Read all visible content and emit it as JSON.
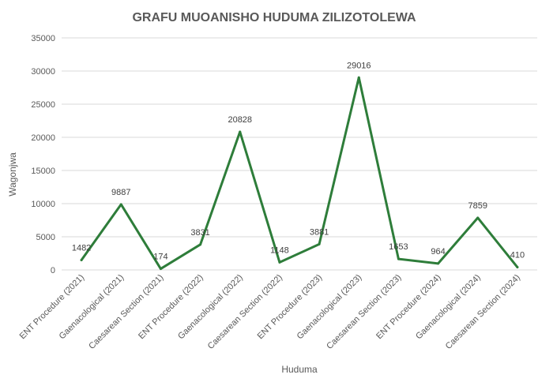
{
  "chart_data": {
    "type": "line",
    "title": "GRAFU MUOANISHO HUDUMA ZILIZOTOLEWA",
    "xlabel": "Huduma",
    "ylabel": "Wagonjwa",
    "ylim": [
      0,
      35000
    ],
    "yticks": [
      "0",
      "5000",
      "10000",
      "15000",
      "20000",
      "25000",
      "30000",
      "35000"
    ],
    "grid": true,
    "legend": "none",
    "categories": [
      "ENT Procedure (2021)",
      "Gaenacological (2021)",
      "Caesarean Section (2021)",
      "ENT Procedure (2022)",
      "Gaenacological (2022)",
      "Caesarean Section (2022)",
      "ENT Procedure (2023)",
      "Gaenacological (2023)",
      "Caesarean Section (2023)",
      "ENT Procedure (2024)",
      "Gaenacological (2024)",
      "Caesarean Section (2024)"
    ],
    "series": [
      {
        "values": [
          1482,
          9887,
          174,
          3831,
          20828,
          1148,
          3881,
          29016,
          1653,
          964,
          7859,
          410
        ],
        "color": "#2e7d3a"
      }
    ]
  }
}
